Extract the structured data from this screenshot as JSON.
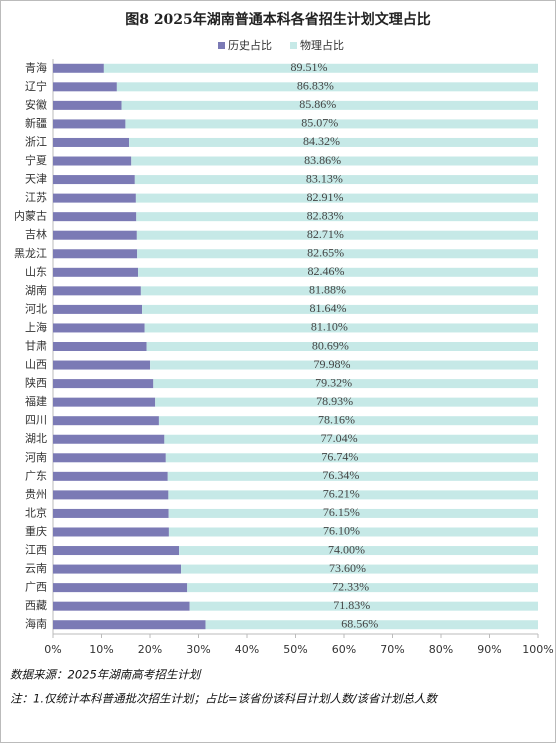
{
  "chart_data": {
    "type": "stacked_barh",
    "title": "图8 2025年湖南普通本科各省招生计划文理占比",
    "categories": [
      "青海",
      "辽宁",
      "安徽",
      "新疆",
      "浙江",
      "宁夏",
      "天津",
      "江苏",
      "内蒙古",
      "吉林",
      "黑龙江",
      "山东",
      "湖南",
      "河北",
      "上海",
      "甘肃",
      "山西",
      "陕西",
      "福建",
      "四川",
      "湖北",
      "河南",
      "广东",
      "贵州",
      "北京",
      "重庆",
      "江西",
      "云南",
      "广西",
      "西藏",
      "海南"
    ],
    "series": [
      {
        "name": "历史占比",
        "color": "#7b7ab5",
        "values": [
          10.49,
          13.17,
          14.14,
          14.93,
          15.68,
          16.14,
          16.87,
          17.09,
          17.17,
          17.29,
          17.35,
          17.54,
          18.12,
          18.36,
          18.9,
          19.31,
          20.02,
          20.68,
          21.07,
          21.84,
          22.96,
          23.26,
          23.66,
          23.79,
          23.85,
          23.9,
          26.0,
          26.4,
          27.67,
          28.17,
          31.44
        ]
      },
      {
        "name": "物理占比",
        "color": "#c6e9e7",
        "values": [
          89.51,
          86.83,
          85.86,
          85.07,
          84.32,
          83.86,
          83.13,
          82.91,
          82.83,
          82.71,
          82.65,
          82.46,
          81.88,
          81.64,
          81.1,
          80.69,
          79.98,
          79.32,
          78.93,
          78.16,
          77.04,
          76.74,
          76.34,
          76.21,
          76.15,
          76.1,
          74.0,
          73.6,
          72.33,
          71.83,
          68.56
        ],
        "value_labels": [
          "89.51%",
          "86.83%",
          "85.86%",
          "85.07%",
          "84.32%",
          "83.86%",
          "83.13%",
          "82.91%",
          "82.83%",
          "82.71%",
          "82.65%",
          "82.46%",
          "81.88%",
          "81.64%",
          "81.10%",
          "80.69%",
          "79.98%",
          "79.32%",
          "78.93%",
          "78.16%",
          "77.04%",
          "76.74%",
          "76.34%",
          "76.21%",
          "76.15%",
          "76.10%",
          "74.00%",
          "73.60%",
          "72.33%",
          "71.83%",
          "68.56%"
        ]
      }
    ],
    "xlim": [
      0,
      100
    ],
    "xticks": [
      {
        "value": 0,
        "label": "0%"
      },
      {
        "value": 10,
        "label": "10%"
      },
      {
        "value": 20,
        "label": "20%"
      },
      {
        "value": 30,
        "label": "30%"
      },
      {
        "value": 40,
        "label": "40%"
      },
      {
        "value": 50,
        "label": "50%"
      },
      {
        "value": 60,
        "label": "60%"
      },
      {
        "value": 70,
        "label": "70%"
      },
      {
        "value": 80,
        "label": "80%"
      },
      {
        "value": 90,
        "label": "90%"
      },
      {
        "value": 100,
        "label": "100%"
      }
    ],
    "legend": "top",
    "notes": [
      "数据来源：2025年湖南高考招生计划",
      "注：1.仅统计本科普通批次招生计划；占比=该省份该科目计划人数/该省计划总人数"
    ]
  }
}
